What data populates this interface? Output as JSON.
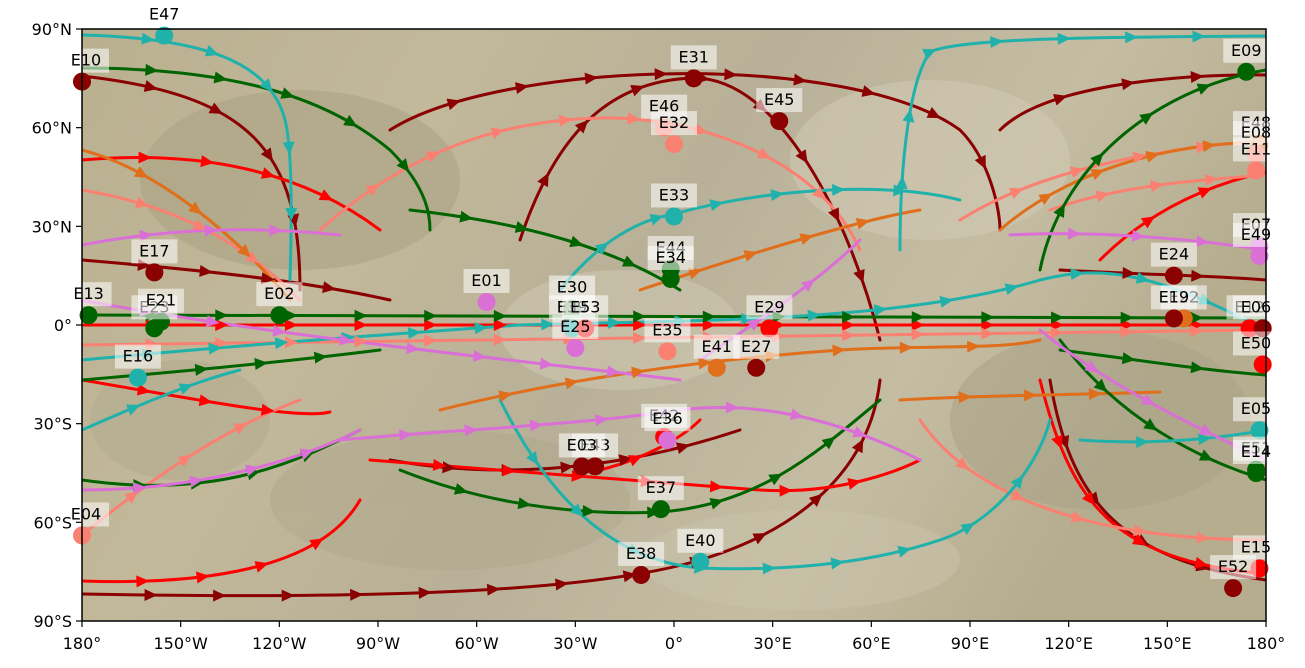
{
  "chart_data": {
    "type": "map",
    "title": "",
    "xlabel": "",
    "ylabel": "",
    "xlim": [
      -180,
      180
    ],
    "ylim": [
      -90,
      90
    ],
    "xticks": [
      "180°",
      "150°W",
      "120°W",
      "90°W",
      "60°W",
      "30°W",
      "0°",
      "30°E",
      "60°E",
      "90°E",
      "120°E",
      "150°E",
      "180°"
    ],
    "yticks": [
      "90°N",
      "60°N",
      "30°N",
      "0°",
      "30°S",
      "60°S",
      "90°S"
    ],
    "colors": {
      "darkred": "#8b0000",
      "red": "#ff0000",
      "salmon": "#fa8072",
      "orange": "#e06e1a",
      "green": "#006400",
      "teal": "#20b2aa",
      "orchid": "#da70d6"
    },
    "encounters": [
      {
        "name": "E10",
        "lon": -180,
        "lat": 74,
        "color": "#8b0000"
      },
      {
        "name": "E47",
        "lon": -155,
        "lat": 88,
        "color": "#20b2aa"
      },
      {
        "name": "E31",
        "lon": 6,
        "lat": 75,
        "color": "#8b0000"
      },
      {
        "name": "E09",
        "lon": 174,
        "lat": 77,
        "color": "#006400"
      },
      {
        "name": "E46",
        "lon": -3,
        "lat": 60,
        "color": "#fa8072"
      },
      {
        "name": "E32",
        "lon": 0,
        "lat": 55,
        "color": "#fa8072"
      },
      {
        "name": "E45",
        "lon": 32,
        "lat": 62,
        "color": "#8b0000"
      },
      {
        "name": "E48",
        "lon": 178,
        "lat": 55,
        "color": "#e06e1a"
      },
      {
        "name": "E08",
        "lon": 177,
        "lat": 52,
        "color": "#fa8072"
      },
      {
        "name": "E11",
        "lon": 177,
        "lat": 47,
        "color": "#fa8072"
      },
      {
        "name": "E33",
        "lon": 0,
        "lat": 33,
        "color": "#20b2aa"
      },
      {
        "name": "E07",
        "lon": 178,
        "lat": 24,
        "color": "#da70d6"
      },
      {
        "name": "E49",
        "lon": 178,
        "lat": 21,
        "color": "#da70d6"
      },
      {
        "name": "E17",
        "lon": -158,
        "lat": 16,
        "color": "#8b0000"
      },
      {
        "name": "E44",
        "lon": -1,
        "lat": 17,
        "color": "#006400"
      },
      {
        "name": "E34",
        "lon": -1,
        "lat": 14,
        "color": "#006400"
      },
      {
        "name": "E24",
        "lon": 152,
        "lat": 15,
        "color": "#8b0000"
      },
      {
        "name": "E01",
        "lon": -57,
        "lat": 7,
        "color": "#da70d6"
      },
      {
        "name": "E30",
        "lon": -31,
        "lat": 5,
        "color": "#006400"
      },
      {
        "name": "E13",
        "lon": -178,
        "lat": 3,
        "color": "#006400"
      },
      {
        "name": "E02",
        "lon": -120,
        "lat": 3,
        "color": "#006400"
      },
      {
        "name": "E23",
        "lon": -158,
        "lat": -1,
        "color": "#006400"
      },
      {
        "name": "E21",
        "lon": -156,
        "lat": 1,
        "color": "#006400"
      },
      {
        "name": "E39",
        "lon": -31,
        "lat": -1,
        "color": "#20b2aa"
      },
      {
        "name": "E29",
        "lon": 29,
        "lat": -1,
        "color": "#ff0000"
      },
      {
        "name": "E22",
        "lon": 155,
        "lat": 2,
        "color": "#e06e1a"
      },
      {
        "name": "E19",
        "lon": 152,
        "lat": 2,
        "color": "#8b0000"
      },
      {
        "name": "E53",
        "lon": -27,
        "lat": -1,
        "color": "#ff0000"
      },
      {
        "name": "E12",
        "lon": 175,
        "lat": -1,
        "color": "#ff0000"
      },
      {
        "name": "E06",
        "lon": 179,
        "lat": -1,
        "color": "#8b0000"
      },
      {
        "name": "E25",
        "lon": -30,
        "lat": -7,
        "color": "#da70d6"
      },
      {
        "name": "E35",
        "lon": -2,
        "lat": -8,
        "color": "#fa8072"
      },
      {
        "name": "E50",
        "lon": 179,
        "lat": -12,
        "color": "#ff0000"
      },
      {
        "name": "E16",
        "lon": -163,
        "lat": -16,
        "color": "#20b2aa"
      },
      {
        "name": "E41",
        "lon": 13,
        "lat": -13,
        "color": "#e06e1a"
      },
      {
        "name": "E27",
        "lon": 25,
        "lat": -13,
        "color": "#8b0000"
      },
      {
        "name": "E05",
        "lon": 178,
        "lat": -32,
        "color": "#20b2aa"
      },
      {
        "name": "E42",
        "lon": -3,
        "lat": -34,
        "color": "#ff0000"
      },
      {
        "name": "E36",
        "lon": -2,
        "lat": -35,
        "color": "#da70d6"
      },
      {
        "name": "E43",
        "lon": -24,
        "lat": -43,
        "color": "#8b0000"
      },
      {
        "name": "E03",
        "lon": -28,
        "lat": -43,
        "color": "#8b0000"
      },
      {
        "name": "E51",
        "lon": 177,
        "lat": -44,
        "color": "#006400"
      },
      {
        "name": "E14",
        "lon": 177,
        "lat": -45,
        "color": "#006400"
      },
      {
        "name": "E37",
        "lon": -4,
        "lat": -56,
        "color": "#006400"
      },
      {
        "name": "E04",
        "lon": -180,
        "lat": -64,
        "color": "#fa8072"
      },
      {
        "name": "E40",
        "lon": 8,
        "lat": -72,
        "color": "#20b2aa"
      },
      {
        "name": "E38",
        "lon": -10,
        "lat": -76,
        "color": "#8b0000"
      },
      {
        "name": "E15",
        "lon": 178,
        "lat": -74,
        "color": "#ff0000"
      },
      {
        "name": "E52",
        "lon": 170,
        "lat": -80,
        "color": "#8b0000"
      }
    ]
  }
}
